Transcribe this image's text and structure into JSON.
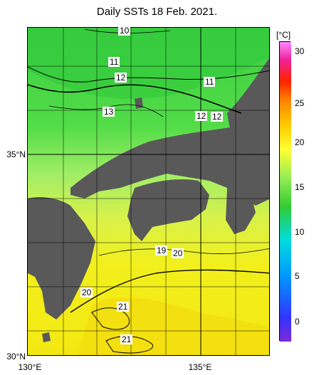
{
  "title": "Daily SSTs 18 Feb. 2021.",
  "unit_label": "[°C]",
  "axes": {
    "y_labels": [
      "35°N",
      "30°N"
    ],
    "x_labels": [
      "130°E",
      "135°E"
    ]
  },
  "colorbar": {
    "ticks": [
      "30",
      "25",
      "20",
      "15",
      "10",
      "5",
      "0"
    ],
    "range": [
      -5,
      32
    ],
    "colors": [
      "#7b2bd6",
      "#3333ff",
      "#0099ff",
      "#00dddd",
      "#33cc33",
      "#99ee55",
      "#ffff33",
      "#ffcc00",
      "#ff8800",
      "#ff2200",
      "#ee2299",
      "#ff88ff"
    ]
  },
  "contour_labels": [
    "10",
    "11",
    "11",
    "12",
    "12",
    "12",
    "13",
    "19",
    "20",
    "20",
    "21",
    "21"
  ],
  "colors": {
    "land": "#595959",
    "cold_sea": "#3ed43e",
    "mid_sea": "#a8ef5a",
    "warm_sea": "#f3f31a"
  }
}
